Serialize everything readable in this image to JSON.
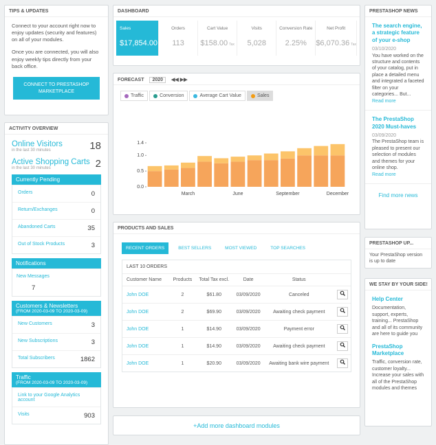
{
  "tips": {
    "title": "TIPS & UPDATES",
    "text1": "Connect to your account right now to enjoy updates (security and features) on all of your modules.",
    "text2": "Once you are connected, you will also enjoy weekly tips directly from your back office.",
    "button": "CONNECT TO PRESTASHOP MARKETPLACE"
  },
  "activity": {
    "title": "ACTIVITY OVERVIEW",
    "stats": [
      {
        "label": "Online Visitors",
        "sub": "in the last 30 minutes",
        "value": 18
      },
      {
        "label": "Active Shopping Carts",
        "sub": "in the last 30 minutes",
        "value": 2
      }
    ],
    "sections": [
      {
        "title": "Currently Pending",
        "rows": [
          [
            "Orders",
            0
          ],
          [
            "Return/Exchanges",
            0
          ],
          [
            "Abandoned Carts",
            35
          ],
          [
            "Out of Stock Products",
            3
          ]
        ]
      },
      {
        "title": "Notifications",
        "rows": [
          [
            "New Messages",
            7
          ]
        ]
      },
      {
        "title": "Customers & Newsletters",
        "subtitle": "(FROM 2020-03-09 TO 2020-03-09)",
        "rows": [
          [
            "New Customers",
            3
          ],
          [
            "New Subscriptions",
            3
          ],
          [
            "Total Subscribers",
            1862
          ]
        ]
      },
      {
        "title": "Traffic",
        "subtitle": "(FROM 2020-03-09 TO 2020-03-09)",
        "link": "Link to your Google Analytics account",
        "rows": [
          [
            "Visits",
            903
          ]
        ]
      }
    ]
  },
  "dashboard": {
    "title": "DASHBOARD",
    "kpis": [
      {
        "label": "Sales",
        "value": "$17,854.00"
      },
      {
        "label": "Orders",
        "value": 113
      },
      {
        "label": "Cart Value",
        "value": "$158.00",
        "note": "Tax"
      },
      {
        "label": "Visits",
        "value": "5,028"
      },
      {
        "label": "Conversion Rate",
        "value": "2.25%"
      },
      {
        "label": "Net Profit",
        "value": "$6,070.36",
        "note": "Tax"
      }
    ]
  },
  "forecast": {
    "title": "FORECAST",
    "year": "2020",
    "tabs": [
      {
        "label": "Traffic",
        "color": "#a569bd"
      },
      {
        "label": "Conversion",
        "color": "#2a9d8f"
      },
      {
        "label": "Average Cart Value",
        "color": "#3bb9e0"
      },
      {
        "label": "Sales",
        "color": "#f39c12"
      }
    ]
  },
  "chart_data": {
    "type": "bar",
    "stacked": true,
    "categories": [
      null,
      null,
      "March",
      null,
      null,
      "June",
      null,
      null,
      "September",
      null,
      null,
      "December"
    ],
    "series": [
      {
        "color": "#f6a55b",
        "values": [
          0.5,
          0.55,
          0.6,
          0.8,
          0.75,
          0.8,
          0.85,
          0.85,
          0.9,
          1.0,
          1.0,
          1.0
        ]
      },
      {
        "color": "#fcc46a",
        "values": [
          0.16,
          0.13,
          0.17,
          0.18,
          0.16,
          0.16,
          0.15,
          0.21,
          0.23,
          0.23,
          0.3,
          0.36
        ]
      }
    ],
    "ylim": [
      0,
      1.4
    ],
    "yticks": [
      {
        "value": 0,
        "label": "0.0"
      },
      {
        "value": 0.5,
        "label": "0.5"
      },
      {
        "value": 1,
        "label": "1.0"
      },
      1.4
    ]
  },
  "products": {
    "title": "PRODUCTS AND SALES",
    "tabs": [
      "RECENT ORDERS",
      "BEST SELLERS",
      "MOST VIEWED",
      "TOP SEARCHES"
    ],
    "subtitle": "LAST 10 ORDERS",
    "columns": [
      "Customer Name",
      "Products",
      "Total Tax excl.",
      "Date",
      "Status"
    ],
    "rows": [
      [
        "John DOE",
        2,
        "$61.80",
        "03/09/2020",
        "Canceled"
      ],
      [
        "John DOE",
        2,
        "$69.90",
        "03/09/2020",
        "Awaiting check payment"
      ],
      [
        "John DOE",
        1,
        "$14.90",
        "03/09/2020",
        "Payment error"
      ],
      [
        "John DOE",
        1,
        "$14.90",
        "03/09/2020",
        "Awaiting check payment"
      ],
      [
        "John DOE",
        1,
        "$20.90",
        "03/09/2020",
        "Awaiting bank wire payment"
      ]
    ]
  },
  "add_modules": "Add more dashboard modules",
  "news": {
    "title": "PRESTASHOP NEWS",
    "items": [
      {
        "title": "The search engine, a strategic feature of your e-shop",
        "date": "03/10/2020",
        "text": "You have worked on the structure and contents of your catalog, put in place a detailed menu and integrated a faceted filter on your categories... But...",
        "link": "Read more"
      },
      {
        "title": "The PrestaShop 2020 Must-haves",
        "date": "03/09/2020",
        "text": "The PrestaShop team is pleased to present our selection of modules and themes for your online shop.",
        "link": "Read more"
      }
    ],
    "more": "Find more news"
  },
  "update": {
    "title": "PRESTASHOP UP...",
    "text": "Your PrestaShop version is up to date"
  },
  "support": {
    "title": "WE STAY BY YOUR SIDE!",
    "items": [
      {
        "title": "Help Center",
        "text": "Documentation, support, experts, training... PrestaShop and all of its community are here to guide you"
      },
      {
        "title": "PrestaShop Marketplace",
        "text": "Traffic, conversion rate, customer loyalty... Increase your sales with all of the PrestaShop modules and themes"
      }
    ]
  }
}
